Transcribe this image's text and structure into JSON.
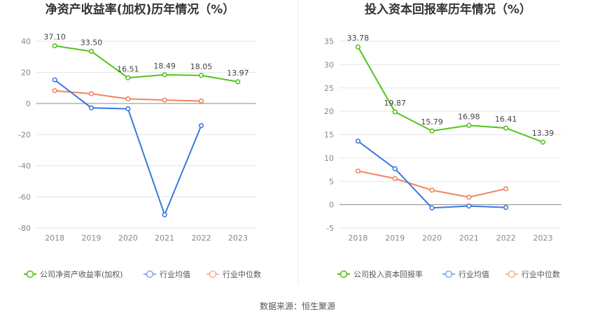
{
  "source": "数据来源：恒生聚源",
  "colors": {
    "company": "#52c41a",
    "average": "#3a78e0",
    "median": "#f0845a"
  },
  "chart_data": [
    {
      "type": "line",
      "title": "净资产收益率(加权)历年情况（%）",
      "categories": [
        "2018",
        "2019",
        "2020",
        "2021",
        "2022",
        "2023"
      ],
      "ylim": [
        -80,
        40
      ],
      "yticks": [
        40,
        20,
        0,
        -20,
        -40,
        -60,
        -80
      ],
      "legend_placement": "bottom",
      "series": [
        {
          "name": "公司净资产收益率(加权)",
          "key": "company",
          "values": [
            37.1,
            33.5,
            16.51,
            18.49,
            18.05,
            13.97
          ],
          "labels": [
            "37.10",
            "33.50",
            "16.51",
            "18.49",
            "18.05",
            "13.97"
          ]
        },
        {
          "name": "行业均值",
          "key": "average",
          "values": [
            15.2,
            -2.8,
            -3.4,
            -71.5,
            -14.2,
            null
          ]
        },
        {
          "name": "行业中位数",
          "key": "median",
          "values": [
            8.2,
            6.3,
            3.0,
            2.2,
            1.6,
            null
          ]
        }
      ]
    },
    {
      "type": "line",
      "title": "投入资本回报率历年情况（%）",
      "categories": [
        "2018",
        "2019",
        "2020",
        "2021",
        "2022",
        "2023"
      ],
      "ylim": [
        -5,
        35
      ],
      "yticks": [
        35,
        30,
        25,
        20,
        15,
        10,
        5,
        0,
        -5
      ],
      "legend_placement": "bottom",
      "series": [
        {
          "name": "公司投入资本回报率",
          "key": "company",
          "values": [
            33.78,
            19.87,
            15.79,
            16.98,
            16.41,
            13.39
          ],
          "labels": [
            "33.78",
            "19.87",
            "15.79",
            "16.98",
            "16.41",
            "13.39"
          ]
        },
        {
          "name": "行业均值",
          "key": "average",
          "values": [
            13.6,
            7.7,
            -0.7,
            -0.3,
            -0.6,
            null
          ]
        },
        {
          "name": "行业中位数",
          "key": "median",
          "values": [
            7.2,
            5.6,
            3.1,
            1.6,
            3.4,
            null
          ]
        }
      ]
    }
  ]
}
